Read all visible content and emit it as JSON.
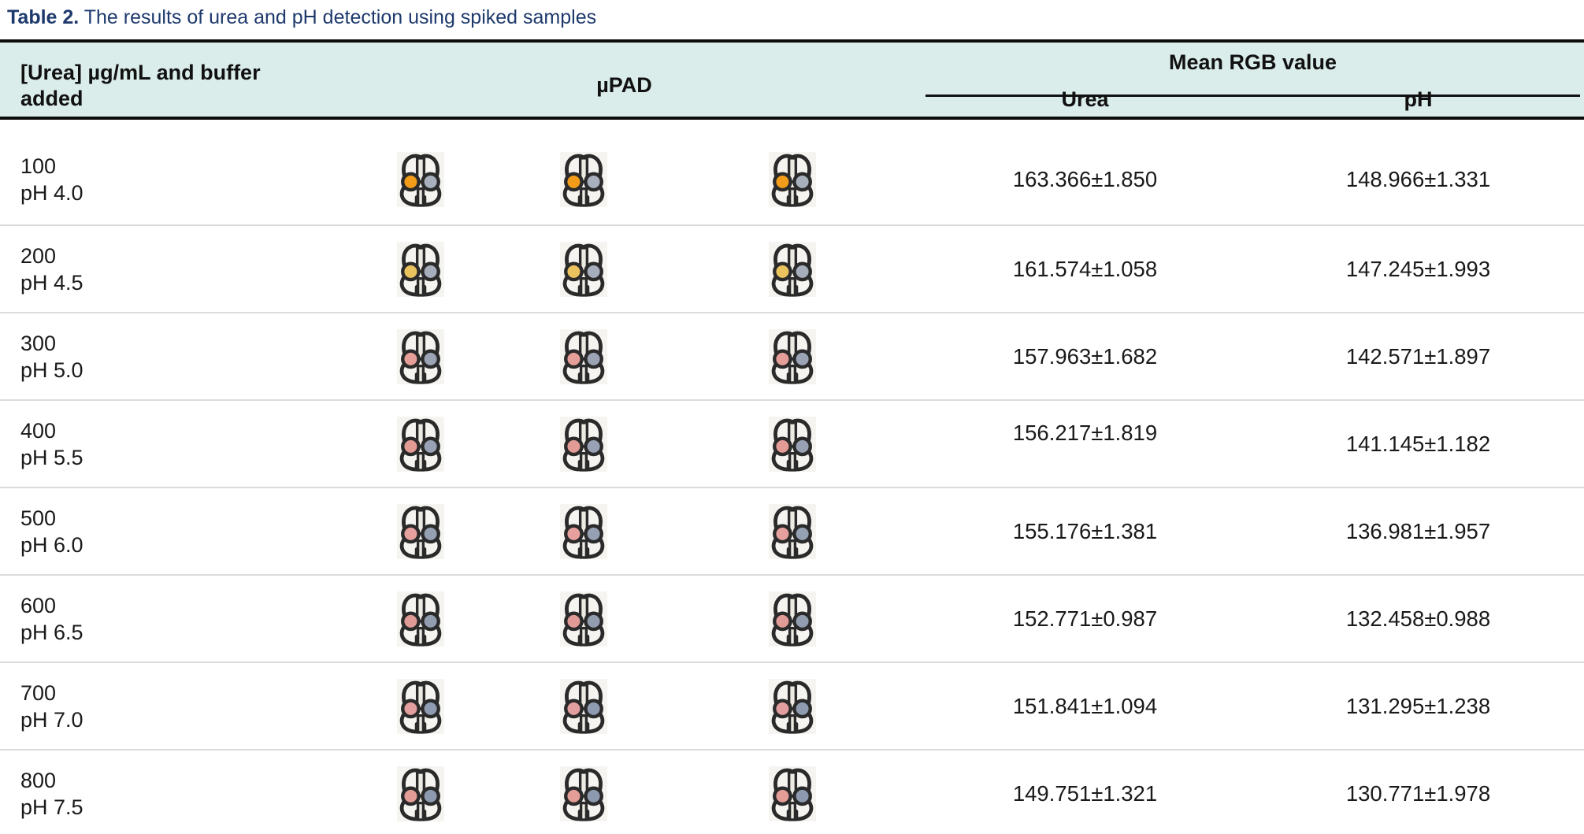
{
  "title": {
    "label": "Table 2.",
    "text": " The results of urea and pH detection using spiked samples"
  },
  "colors": {
    "title_navy": "#1e3a6d",
    "header_background": "#daedeb",
    "rule_black": "#0c0c0c",
    "row_separator": "#dbdbdb",
    "device_ink": "#2a2a2a",
    "device_paper": "#f5f4f0"
  },
  "table": {
    "col1_header_line1": "[Urea] µg/mL and buffer",
    "col1_header_line2": "added",
    "col2_header": "µPAD",
    "group_header": "Mean RGB value",
    "sub_headers": {
      "urea": "Urea",
      "ph": "pH"
    },
    "rows": [
      {
        "conc": "100",
        "ph_label": "pH 4.0",
        "urea_value": "163.366±1.850",
        "ph_value": "148.966±1.331",
        "pad_left_color": "#f39c1a",
        "pad_right_color": "#a9b0bd"
      },
      {
        "conc": "200",
        "ph_label": "pH 4.5",
        "urea_value": "161.574±1.058",
        "ph_value": "147.245±1.993",
        "pad_left_color": "#eac35e",
        "pad_right_color": "#a6adbb"
      },
      {
        "conc": "300",
        "ph_label": "pH 5.0",
        "urea_value": "157.963±1.682",
        "ph_value": "142.571±1.897",
        "pad_left_color": "#e59e98",
        "pad_right_color": "#9ba4b5"
      },
      {
        "conc": "400",
        "ph_label": "pH 5.5",
        "urea_value": "156.217±1.819",
        "ph_value": "141.145±1.182",
        "pad_left_color": "#e39b95",
        "pad_right_color": "#98a2b4"
      },
      {
        "conc": "500",
        "ph_label": "pH 6.0",
        "urea_value": "155.176±1.381",
        "ph_value": "136.981±1.957",
        "pad_left_color": "#e6a09d",
        "pad_right_color": "#95a0b2"
      },
      {
        "conc": "600",
        "ph_label": "pH 6.5",
        "urea_value": "152.771±0.987",
        "ph_value": "132.458±0.988",
        "pad_left_color": "#e19b97",
        "pad_right_color": "#929db0"
      },
      {
        "conc": "700",
        "ph_label": "pH 7.0",
        "urea_value": "151.841±1.094",
        "ph_value": "131.295±1.238",
        "pad_left_color": "#e39f9f",
        "pad_right_color": "#8f9bb0"
      },
      {
        "conc": "800",
        "ph_label": "pH 7.5",
        "urea_value": "149.751±1.321",
        "ph_value": "130.771±1.978",
        "pad_left_color": "#e59d98",
        "pad_right_color": "#8d99ae"
      }
    ]
  }
}
